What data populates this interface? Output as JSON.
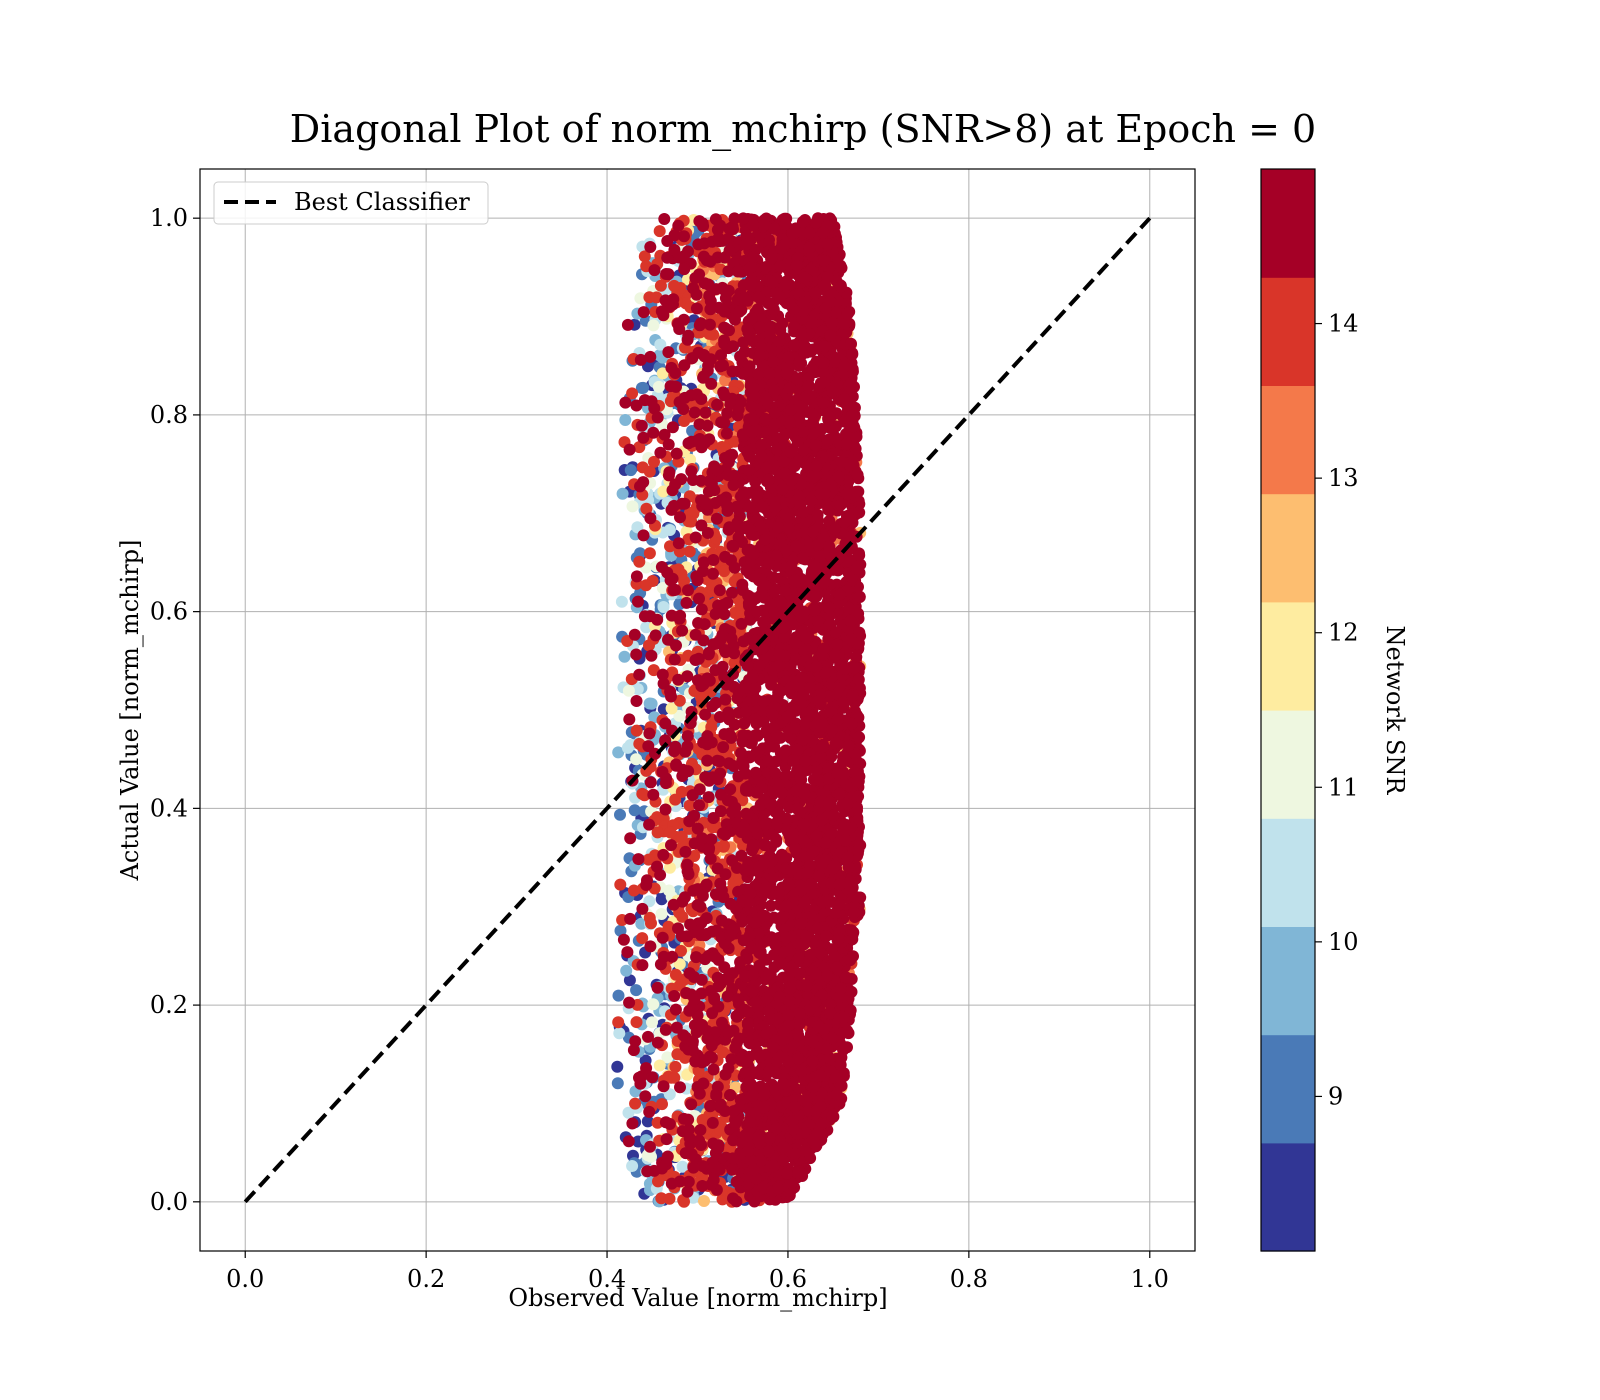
{
  "chart_data": {
    "type": "scatter",
    "title": "Diagonal Plot of norm_mchirp (SNR>8) at Epoch = 0",
    "xlabel": "Observed Value [norm_mchirp]",
    "ylabel": "Actual Value [norm_mchirp]",
    "xlim": [
      -0.05,
      1.05
    ],
    "ylim": [
      -0.05,
      1.05
    ],
    "xticks": [
      0.0,
      0.2,
      0.4,
      0.6,
      0.8,
      1.0
    ],
    "yticks": [
      0.0,
      0.2,
      0.4,
      0.6,
      0.8,
      1.0
    ],
    "xtick_labels": [
      "0.0",
      "0.2",
      "0.4",
      "0.6",
      "0.8",
      "1.0"
    ],
    "ytick_labels": [
      "0.0",
      "0.2",
      "0.4",
      "0.6",
      "0.8",
      "1.0"
    ],
    "grid": true,
    "legend": {
      "placement": "upper-left",
      "entries": [
        {
          "label": "Best Classifier",
          "style": "dashed",
          "color": "#000000"
        }
      ]
    },
    "reference_line": {
      "name": "Best Classifier",
      "x": [
        0.0,
        1.0
      ],
      "y": [
        0.0,
        1.0
      ],
      "style": "dashed",
      "color": "#000000"
    },
    "colorbar": {
      "label": "Network SNR",
      "range": [
        8,
        15
      ],
      "ticks": [
        9,
        10,
        11,
        12,
        13,
        14
      ],
      "tick_labels": [
        "9",
        "10",
        "11",
        "12",
        "13",
        "14"
      ],
      "boundaries": [
        8,
        8.7,
        9.4,
        10.1,
        10.8,
        11.5,
        12.2,
        12.9,
        13.6,
        14.3,
        15
      ],
      "colors": [
        "#313695",
        "#4a7ab7",
        "#80b6d6",
        "#c0e2ec",
        "#eef7e0",
        "#feeca0",
        "#fdbe70",
        "#f4794a",
        "#d93529",
        "#a50026"
      ]
    },
    "scatter_summary": {
      "x_range_by_actual": [
        {
          "y": 0.0,
          "x_min": 0.43,
          "x_max": 0.6
        },
        {
          "y": 0.1,
          "x_min": 0.41,
          "x_max": 0.66
        },
        {
          "y": 0.3,
          "x_min": 0.41,
          "x_max": 0.68
        },
        {
          "y": 0.5,
          "x_min": 0.41,
          "x_max": 0.68
        },
        {
          "y": 0.7,
          "x_min": 0.41,
          "x_max": 0.68
        },
        {
          "y": 0.9,
          "x_min": 0.42,
          "x_max": 0.67
        },
        {
          "y": 1.0,
          "x_min": 0.44,
          "x_max": 0.65
        }
      ],
      "dense_high_snr_core_x": [
        0.55,
        0.67
      ],
      "marker_color_by": "Network SNR"
    }
  }
}
